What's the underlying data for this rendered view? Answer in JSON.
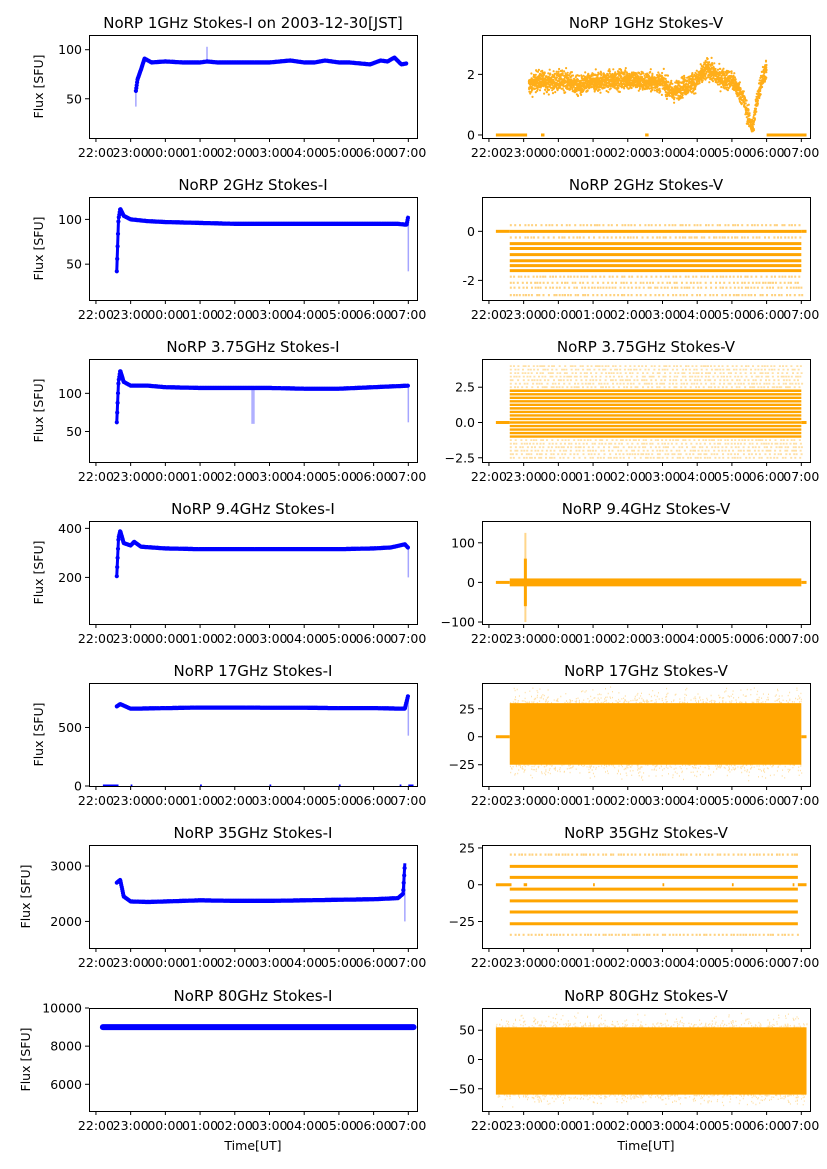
{
  "figure": {
    "x_tick_labels": [
      "22:00",
      "23:00",
      "00:00",
      "01:00",
      "02:00",
      "03:00",
      "04:00",
      "05:00",
      "06:00",
      "07:00"
    ],
    "x_axis_label": "Time[UT]",
    "y_axis_label": "Flux [SFU]",
    "colors": {
      "stokes_i": "#0000ff",
      "stokes_v": "#ffa500"
    }
  },
  "chart_data": [
    {
      "type": "scatter",
      "id": "1ghz-i",
      "column": "left",
      "title": "NoRP 1GHz Stokes-I on 2003-12-30[JST]",
      "ylabel": "Flux [SFU]",
      "xlabel": "",
      "xlim_hours": [
        21.8,
        31.25
      ],
      "ylim": [
        10,
        115
      ],
      "yticks": [
        50,
        100
      ],
      "series": [
        {
          "name": "Stokes-I",
          "color": "#0000ff",
          "x_hours": [
            23.15,
            23.2,
            23.3,
            23.4,
            23.6,
            24.0,
            24.5,
            25.0,
            25.2,
            25.5,
            26.0,
            26.5,
            27.0,
            27.3,
            27.6,
            28.0,
            28.3,
            28.6,
            29.0,
            29.3,
            29.6,
            29.9,
            30.2,
            30.4,
            30.6,
            30.8,
            30.95
          ],
          "y": [
            58,
            70,
            80,
            91,
            87,
            88,
            87,
            87,
            88,
            87,
            87,
            87,
            87,
            88,
            89,
            87,
            87,
            89,
            87,
            87,
            86,
            85,
            89,
            88,
            92,
            85,
            86
          ],
          "outliers": [
            {
              "x_hours": 23.15,
              "y": 42
            },
            {
              "x_hours": 25.2,
              "y": 103
            }
          ]
        }
      ]
    },
    {
      "type": "scatter",
      "id": "1ghz-v",
      "column": "right",
      "title": "NoRP 1GHz Stokes-V",
      "ylabel": "",
      "xlabel": "",
      "xlim_hours": [
        21.8,
        31.25
      ],
      "ylim": [
        -0.1,
        3.3
      ],
      "yticks": [
        0,
        2
      ],
      "series": [
        {
          "name": "Stokes-V",
          "color": "#ffa500",
          "x_hours": [
            23.15,
            23.4,
            23.8,
            24.2,
            24.6,
            25.0,
            25.5,
            26.0,
            26.5,
            27.0,
            27.3,
            27.6,
            28.0,
            28.3,
            28.6,
            29.0,
            29.3,
            29.5,
            29.6,
            29.7,
            29.85,
            30.0
          ],
          "y_center": [
            1.6,
            1.8,
            1.75,
            1.8,
            1.6,
            1.75,
            1.8,
            1.85,
            1.75,
            1.75,
            1.4,
            1.6,
            1.8,
            2.2,
            1.9,
            1.8,
            1.3,
            0.5,
            0.2,
            1.0,
            1.8,
            2.2
          ],
          "spread": 0.35,
          "zero_segments_hours": [
            [
              22.2,
              23.1
            ],
            [
              23.5,
              23.6
            ],
            [
              26.5,
              26.6
            ],
            [
              30.0,
              31.15
            ]
          ]
        }
      ]
    },
    {
      "type": "scatter",
      "id": "2ghz-i",
      "column": "left",
      "title": "NoRP 2GHz Stokes-I",
      "ylabel": "Flux [SFU]",
      "xlabel": "",
      "xlim_hours": [
        21.8,
        31.25
      ],
      "ylim": [
        10,
        125
      ],
      "yticks": [
        50,
        100
      ],
      "series": [
        {
          "name": "Stokes-I",
          "color": "#0000ff",
          "x_hours": [
            22.6,
            22.65,
            22.7,
            22.8,
            23.0,
            23.5,
            24.0,
            25.0,
            26.0,
            27.0,
            28.0,
            29.0,
            30.0,
            30.7,
            30.95,
            31.0
          ],
          "y": [
            42,
            100,
            112,
            104,
            100,
            98,
            97,
            96,
            95,
            95,
            95,
            95,
            95,
            95,
            94,
            104
          ],
          "outliers": [
            {
              "x_hours": 31.0,
              "y": 42
            }
          ]
        }
      ]
    },
    {
      "type": "scatter",
      "id": "2ghz-v",
      "column": "right",
      "title": "NoRP 2GHz Stokes-V",
      "ylabel": "",
      "xlabel": "",
      "xlim_hours": [
        21.8,
        31.25
      ],
      "ylim": [
        -2.8,
        1.4
      ],
      "yticks": [
        -2,
        0
      ],
      "series": [
        {
          "name": "Stokes-V",
          "color": "#ffa500",
          "x_range_hours": [
            22.6,
            31.0
          ],
          "quantized_levels": [
            0.25,
            0.0,
            -0.25,
            -0.5,
            -0.7,
            -0.95,
            -1.2,
            -1.4,
            -1.6,
            -1.85,
            -2.1,
            -2.3,
            -2.6
          ],
          "dense_levels": [
            0.0,
            -0.5,
            -0.7,
            -0.95,
            -1.2,
            -1.4,
            -1.6
          ],
          "zero_segments_hours": [
            [
              22.2,
              22.6
            ],
            [
              31.0,
              31.15
            ]
          ]
        }
      ]
    },
    {
      "type": "scatter",
      "id": "3.75ghz-i",
      "column": "left",
      "title": "NoRP 3.75GHz Stokes-I",
      "ylabel": "Flux [SFU]",
      "xlabel": "",
      "xlim_hours": [
        21.8,
        31.25
      ],
      "ylim": [
        10,
        145
      ],
      "yticks": [
        50,
        100
      ],
      "series": [
        {
          "name": "Stokes-I",
          "color": "#0000ff",
          "x_hours": [
            22.6,
            22.65,
            22.7,
            22.8,
            23.0,
            23.5,
            24.0,
            25.0,
            26.0,
            27.0,
            28.0,
            29.0,
            30.0,
            31.0
          ],
          "y": [
            62,
            115,
            130,
            115,
            110,
            110,
            108,
            107,
            107,
            107,
            106,
            106,
            108,
            110
          ],
          "outliers": [
            {
              "x_hours": 26.5,
              "y": 60
            },
            {
              "x_hours": 26.55,
              "y": 60
            },
            {
              "x_hours": 31.0,
              "y": 62
            }
          ]
        }
      ]
    },
    {
      "type": "scatter",
      "id": "3.75ghz-v",
      "column": "right",
      "title": "NoRP 3.75GHz Stokes-V",
      "ylabel": "",
      "xlabel": "",
      "xlim_hours": [
        21.8,
        31.25
      ],
      "ylim": [
        -2.8,
        4.5
      ],
      "yticks": [
        -2.5,
        0.0,
        2.5
      ],
      "ytick_labels": [
        "−2.5",
        "0.0",
        "2.5"
      ],
      "series": [
        {
          "name": "Stokes-V",
          "color": "#ffa500",
          "x_range_hours": [
            22.6,
            31.0
          ],
          "dense_range": [
            -1.0,
            2.4
          ],
          "sparse_range": [
            -2.5,
            4.0
          ],
          "level_step": 0.25,
          "zero_segments_hours": [
            [
              22.2,
              22.6
            ],
            [
              31.0,
              31.15
            ]
          ]
        }
      ]
    },
    {
      "type": "scatter",
      "id": "9.4ghz-i",
      "column": "left",
      "title": "NoRP 9.4GHz Stokes-I",
      "ylabel": "Flux [SFU]",
      "xlabel": "",
      "xlim_hours": [
        21.8,
        31.25
      ],
      "ylim": [
        10,
        430
      ],
      "yticks": [
        200,
        400
      ],
      "series": [
        {
          "name": "Stokes-I",
          "color": "#0000ff",
          "x_hours": [
            22.6,
            22.65,
            22.7,
            22.8,
            23.0,
            23.1,
            23.3,
            24.0,
            25.0,
            26.0,
            27.0,
            28.0,
            29.0,
            30.0,
            30.5,
            30.9,
            31.0
          ],
          "y": [
            205,
            360,
            390,
            340,
            330,
            345,
            325,
            318,
            315,
            315,
            315,
            315,
            315,
            318,
            322,
            335,
            320
          ],
          "outliers": [
            {
              "x_hours": 31.0,
              "y": 200
            }
          ]
        }
      ]
    },
    {
      "type": "scatter",
      "id": "9.4ghz-v",
      "column": "right",
      "title": "NoRP 9.4GHz Stokes-V",
      "ylabel": "",
      "xlabel": "",
      "xlim_hours": [
        21.8,
        31.25
      ],
      "ylim": [
        -105,
        155
      ],
      "yticks": [
        -100,
        0,
        100
      ],
      "ytick_labels": [
        "−100",
        "0",
        "100"
      ],
      "series": [
        {
          "name": "Stokes-V",
          "color": "#ffa500",
          "x_range_hours": [
            22.6,
            31.0
          ],
          "spread": 10,
          "spike": {
            "x_hours": 23.05,
            "min": -100,
            "max": 125
          },
          "zero_segments_hours": [
            [
              22.2,
              22.6
            ],
            [
              31.0,
              31.15
            ]
          ]
        }
      ]
    },
    {
      "type": "scatter",
      "id": "17ghz-i",
      "column": "left",
      "title": "NoRP 17GHz Stokes-I",
      "ylabel": "Flux [SFU]",
      "xlabel": "",
      "xlim_hours": [
        21.8,
        31.25
      ],
      "ylim": [
        0,
        880
      ],
      "yticks": [
        0,
        500
      ],
      "series": [
        {
          "name": "Stokes-I",
          "color": "#0000ff",
          "x_hours": [
            22.6,
            22.7,
            23.0,
            24.0,
            25.0,
            26.0,
            27.0,
            28.0,
            29.0,
            30.0,
            30.9,
            31.0
          ],
          "y": [
            680,
            700,
            660,
            665,
            670,
            670,
            668,
            668,
            665,
            665,
            660,
            780
          ],
          "outliers": [
            {
              "x_hours": 31.0,
              "y": 430
            }
          ],
          "zero_segments_hours": [
            [
              22.2,
              22.65
            ],
            [
              23.0,
              23.05
            ],
            [
              25.0,
              25.05
            ],
            [
              27.0,
              27.05
            ],
            [
              29.0,
              29.05
            ],
            [
              30.75,
              30.8
            ],
            [
              31.0,
              31.15
            ]
          ]
        }
      ]
    },
    {
      "type": "scatter",
      "id": "17ghz-v",
      "column": "right",
      "title": "NoRP 17GHz Stokes-V",
      "ylabel": "",
      "xlabel": "",
      "xlim_hours": [
        21.8,
        31.25
      ],
      "ylim": [
        -44,
        48
      ],
      "yticks": [
        -25,
        0,
        25
      ],
      "ytick_labels": [
        "−25",
        "0",
        "25"
      ],
      "series": [
        {
          "name": "Stokes-V",
          "color": "#ffa500",
          "x_range_hours": [
            22.6,
            31.0
          ],
          "dense_range": [
            -25,
            30
          ],
          "sparse_range": [
            -40,
            45
          ],
          "zero_segments_hours": [
            [
              22.2,
              22.6
            ],
            [
              31.0,
              31.15
            ]
          ]
        }
      ]
    },
    {
      "type": "scatter",
      "id": "35ghz-i",
      "column": "left",
      "title": "NoRP 35GHz Stokes-I",
      "ylabel": "Flux [SFU]",
      "xlabel": "",
      "xlim_hours": [
        21.8,
        31.25
      ],
      "ylim": [
        1520,
        3380
      ],
      "yticks": [
        2000,
        3000
      ],
      "series": [
        {
          "name": "Stokes-I",
          "color": "#0000ff",
          "x_hours": [
            22.6,
            22.7,
            22.8,
            23.0,
            23.5,
            24.0,
            25.0,
            26.0,
            27.0,
            28.0,
            29.0,
            30.0,
            30.7,
            30.85,
            30.9
          ],
          "y": [
            2700,
            2750,
            2450,
            2360,
            2350,
            2360,
            2380,
            2370,
            2370,
            2380,
            2390,
            2400,
            2420,
            2500,
            3050
          ],
          "outliers": [
            {
              "x_hours": 30.9,
              "y": 2000
            }
          ]
        }
      ]
    },
    {
      "type": "scatter",
      "id": "35ghz-v",
      "column": "right",
      "title": "NoRP 35GHz Stokes-V",
      "ylabel": "",
      "xlabel": "",
      "xlim_hours": [
        21.8,
        31.25
      ],
      "ylim": [
        -43,
        27
      ],
      "yticks": [
        -25,
        0,
        25
      ],
      "ytick_labels": [
        "−25",
        "0",
        "25"
      ],
      "series": [
        {
          "name": "Stokes-V",
          "color": "#ffa500",
          "x_range_hours": [
            22.6,
            30.9
          ],
          "dense_levels": [
            12.5,
            5,
            -3,
            -11,
            -18.5,
            -26.5
          ],
          "sparse_levels": [
            20.5,
            -34
          ],
          "zero_segments_hours": [
            [
              22.2,
              22.65
            ],
            [
              23.0,
              23.1
            ],
            [
              25.0,
              25.05
            ],
            [
              27.0,
              27.05
            ],
            [
              29.0,
              29.05
            ],
            [
              30.75,
              30.8
            ],
            [
              30.9,
              31.15
            ]
          ]
        }
      ]
    },
    {
      "type": "scatter",
      "id": "80ghz-i",
      "column": "left",
      "title": "NoRP 80GHz Stokes-I",
      "ylabel": "Flux [SFU]",
      "xlabel": "Time[UT]",
      "xlim_hours": [
        21.8,
        31.25
      ],
      "ylim": [
        4600,
        10000
      ],
      "yticks": [
        6000,
        8000,
        10000
      ],
      "series": [
        {
          "name": "Stokes-I",
          "color": "#0000ff",
          "x_hours": [
            22.2,
            31.15
          ],
          "y": [
            9000,
            9000
          ]
        }
      ]
    },
    {
      "type": "scatter",
      "id": "80ghz-v",
      "column": "right",
      "title": "NoRP 80GHz Stokes-V",
      "ylabel": "",
      "xlabel": "Time[UT]",
      "xlim_hours": [
        21.8,
        31.25
      ],
      "ylim": [
        -88,
        88
      ],
      "yticks": [
        -50,
        0,
        50
      ],
      "ytick_labels": [
        "−50",
        "0",
        "50"
      ],
      "series": [
        {
          "name": "Stokes-V",
          "color": "#ffa500",
          "x_range_hours": [
            22.2,
            31.15
          ],
          "dense_range": [
            -60,
            55
          ],
          "sparse_range": [
            -82,
            80
          ]
        }
      ]
    }
  ]
}
